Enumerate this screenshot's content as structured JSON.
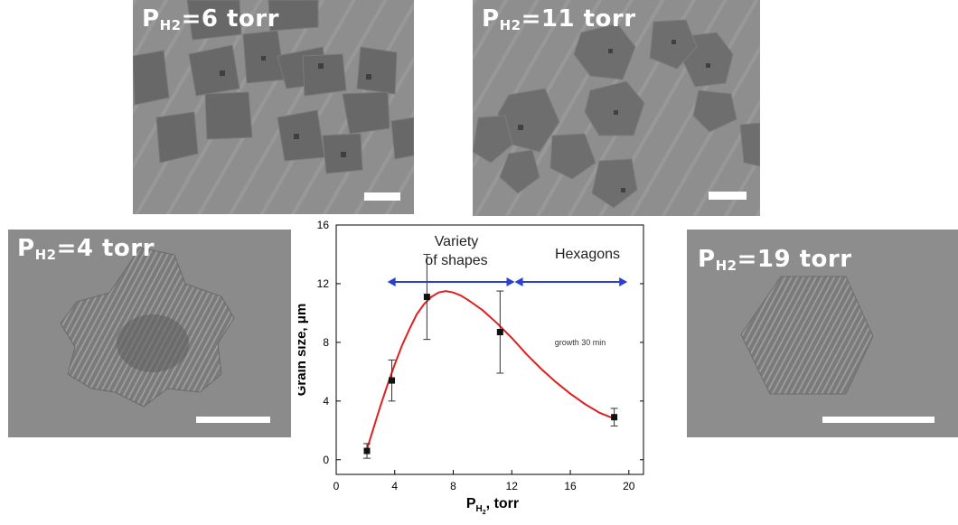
{
  "panels": [
    {
      "id": "p6",
      "label_p": "P",
      "label_sub": "H2",
      "label_rest": "=6 torr"
    },
    {
      "id": "p11",
      "label_p": "P",
      "label_sub": "H2",
      "label_rest": "=11 torr"
    },
    {
      "id": "p4",
      "label_p": "P",
      "label_sub": "H2",
      "label_rest": "=4 torr"
    },
    {
      "id": "p19",
      "label_p": "P",
      "label_sub": "H2",
      "label_rest": "=19 torr"
    }
  ],
  "chart_data": {
    "type": "scatter",
    "xlabel_main": "P",
    "xlabel_sub": "H",
    "xlabel_subsub": "2",
    "xlabel_rest": ", torr",
    "ylabel": "Grain size, μm",
    "xlim": [
      0,
      21
    ],
    "ylim": [
      -1,
      16
    ],
    "xticks": [
      0,
      4,
      8,
      12,
      16,
      20
    ],
    "yticks": [
      0,
      4,
      8,
      12,
      16
    ],
    "series": [
      {
        "points": [
          {
            "x": 2.1,
            "y": 0.6,
            "err": 0.5
          },
          {
            "x": 3.8,
            "y": 5.4,
            "err": 1.4
          },
          {
            "x": 6.2,
            "y": 11.1,
            "err": 2.9
          },
          {
            "x": 11.2,
            "y": 8.7,
            "err": 2.8
          },
          {
            "x": 19.0,
            "y": 2.9,
            "err": 0.6
          }
        ]
      }
    ],
    "fit_curve": {
      "color": "#e02020",
      "x": [
        2.0,
        2.5,
        3.0,
        3.5,
        4.0,
        4.5,
        5.0,
        5.5,
        6.0,
        6.5,
        7.0,
        7.5,
        8.0,
        8.5,
        9.0,
        10.0,
        11.0,
        12.0,
        13.0,
        14.0,
        15.0,
        16.0,
        17.0,
        18.0,
        19.0
      ],
      "y": [
        0.4,
        2.0,
        3.6,
        5.1,
        6.5,
        7.8,
        8.9,
        9.9,
        10.6,
        11.1,
        11.4,
        11.5,
        11.4,
        11.2,
        10.9,
        10.2,
        9.3,
        8.3,
        7.2,
        6.2,
        5.3,
        4.5,
        3.8,
        3.2,
        2.8
      ]
    },
    "annotations": {
      "variety_line1": "Variety",
      "variety_line2": "of shapes",
      "hexagons": "Hexagons",
      "growth": "growth 30 min",
      "arrow_color": "#2b3fd0",
      "variety_range": [
        3.5,
        12.2
      ],
      "hexagons_range": [
        12.2,
        19.9
      ]
    }
  }
}
